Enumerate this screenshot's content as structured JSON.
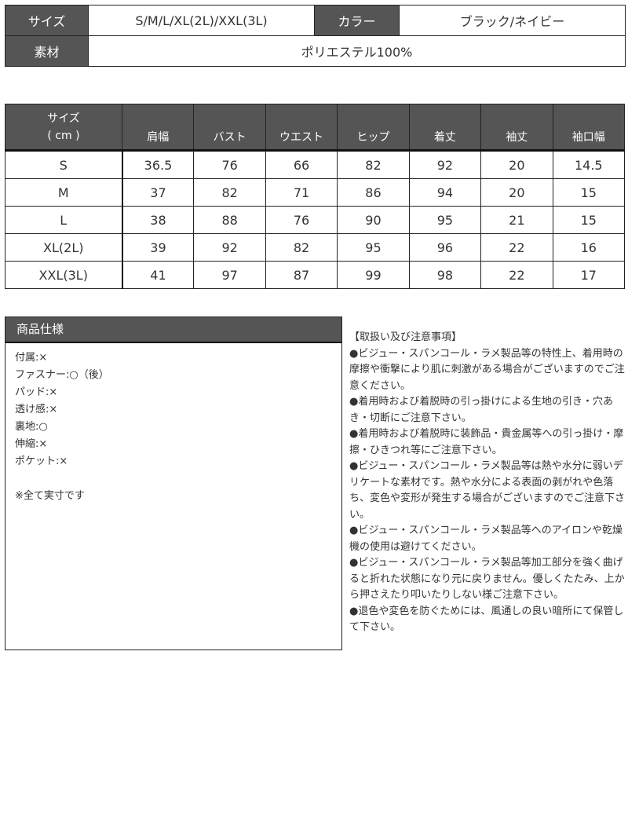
{
  "info": {
    "size_label": "サイズ",
    "size_value": "S/M/L/XL(2L)/XXL(3L)",
    "color_label": "カラー",
    "color_value": "ブラック/ネイビー",
    "material_label": "素材",
    "material_value": "ポリエステル100%"
  },
  "size_table": {
    "header_line1": "サイズ",
    "header_line2": "( cm )",
    "columns": [
      "肩幅",
      "バスト",
      "ウエスト",
      "ヒップ",
      "着丈",
      "袖丈",
      "袖口幅"
    ],
    "rows": [
      {
        "size": "S",
        "values": [
          "36.5",
          "76",
          "66",
          "82",
          "92",
          "20",
          "14.5"
        ]
      },
      {
        "size": "M",
        "values": [
          "37",
          "82",
          "71",
          "86",
          "94",
          "20",
          "15"
        ]
      },
      {
        "size": "L",
        "values": [
          "38",
          "88",
          "76",
          "90",
          "95",
          "21",
          "15"
        ]
      },
      {
        "size": "XL(2L)",
        "values": [
          "39",
          "92",
          "82",
          "95",
          "96",
          "22",
          "16"
        ]
      },
      {
        "size": "XXL(3L)",
        "values": [
          "41",
          "97",
          "87",
          "99",
          "98",
          "22",
          "17"
        ]
      }
    ]
  },
  "spec": {
    "title": "商品仕様",
    "items": [
      "付属:×",
      "ファスナー:○（後）",
      "パッド:×",
      "透け感:×",
      "裏地:○",
      "伸縮:×",
      "ポケット:×"
    ],
    "note": "※全て実寸です"
  },
  "notes": {
    "title": "【取扱い及び注意事項】",
    "items": [
      "●ビジュー・スパンコール・ラメ製品等の特性上、着用時の摩擦や衝撃により肌に刺激がある場合がございますのでご注意ください。",
      "●着用時および着脱時の引っ掛けによる生地の引き・穴あき・切断にご注意下さい。",
      "●着用時および着脱時に装飾品・貴金属等への引っ掛け・摩擦・ひきつれ等にご注意下さい。",
      "●ビジュー・スパンコール・ラメ製品等は熱や水分に弱いデリケートな素材です。熱や水分による表面の剥がれや色落ち、変色や変形が発生する場合がございますのでご注意下さい。",
      "●ビジュー・スパンコール・ラメ製品等へのアイロンや乾燥機の使用は避けてください。",
      "●ビジュー・スパンコール・ラメ製品等加工部分を強く曲げると折れた状態になり元に戻りません。優しくたたみ、上から押さえたり叩いたりしない様ご注意下さい。",
      "●退色や変色を防ぐためには、風通しの良い暗所にて保管して下さい。"
    ]
  }
}
